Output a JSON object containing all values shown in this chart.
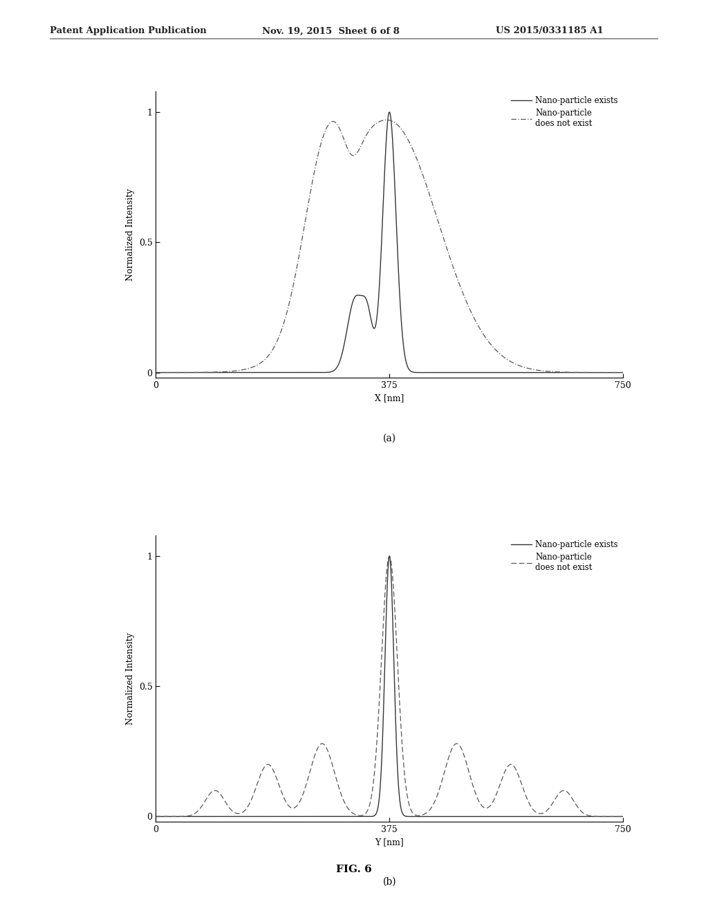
{
  "header_left": "Patent Application Publication",
  "header_center": "Nov. 19, 2015  Sheet 6 of 8",
  "header_right": "US 2015/0331185 A1",
  "figure_label": "FIG. 6",
  "subplot_a_label": "(a)",
  "subplot_b_label": "(b)",
  "xlabel_a": "X [nm]",
  "xlabel_b": "Y [nm]",
  "ylabel": "Normalized Intensity",
  "xticks": [
    0,
    375,
    750
  ],
  "yticks": [
    0,
    0.5,
    1
  ],
  "xlim": [
    0,
    750
  ],
  "ylim": [
    -0.02,
    1.08
  ],
  "legend_line1": "Nano-particle exists",
  "legend_line2": "Nano-particle\ndoes not exist",
  "bg_color": "#ffffff",
  "line_dark": "#333333",
  "line_gray": "#555555"
}
